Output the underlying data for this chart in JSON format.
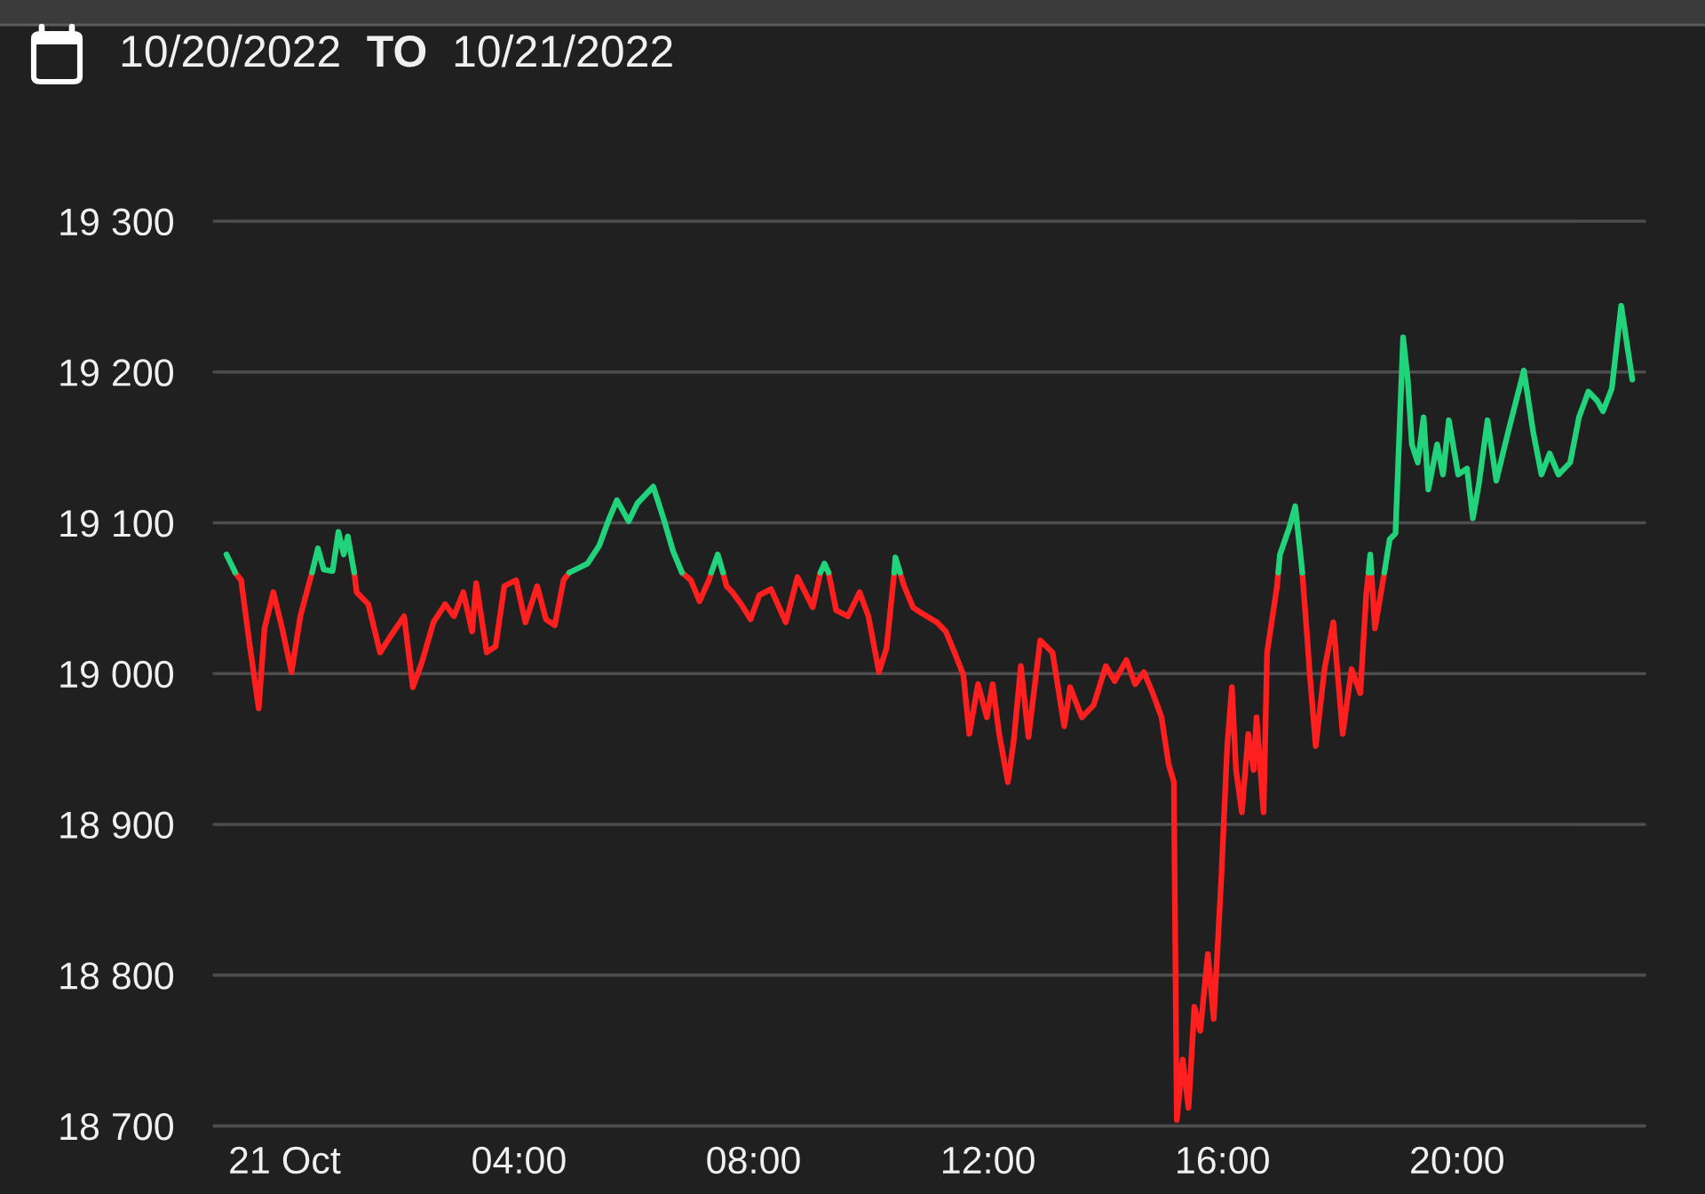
{
  "chart_data": {
    "type": "line",
    "title": "10/20/2022 TO 10/21/2022",
    "x": [
      -0.99,
      -0.84,
      -0.74,
      -0.59,
      -0.44,
      -0.34,
      -0.19,
      -0.04,
      0.12,
      0.27,
      0.42,
      0.47,
      0.57,
      0.67,
      0.82,
      0.92,
      1.01,
      1.08,
      1.18,
      1.19,
      1.23,
      1.43,
      1.63,
      1.83,
      2.04,
      2.19,
      2.34,
      2.54,
      2.74,
      2.89,
      3.05,
      3.2,
      3.27,
      3.45,
      3.6,
      3.75,
      3.95,
      4.11,
      4.31,
      4.46,
      4.61,
      4.76,
      4.86,
      5.17,
      5.37,
      5.52,
      5.67,
      5.87,
      6.02,
      6.29,
      6.48,
      6.63,
      6.78,
      6.93,
      7.08,
      7.24,
      7.28,
      7.39,
      7.48,
      7.54,
      7.64,
      7.79,
      7.95,
      8.1,
      8.3,
      8.55,
      8.75,
      9.01,
      9.14,
      9.21,
      9.28,
      9.41,
      9.61,
      9.81,
      9.96,
      10.14,
      10.27,
      10.4,
      10.42,
      10.5,
      10.57,
      10.72,
      10.87,
      11.13,
      11.28,
      11.43,
      11.58,
      11.68,
      11.83,
      11.98,
      12.08,
      12.19,
      12.34,
      12.44,
      12.56,
      12.69,
      12.89,
      13.1,
      13.3,
      13.4,
      13.6,
      13.8,
      14.01,
      14.16,
      14.36,
      14.51,
      14.66,
      14.81,
      14.96,
      15.08,
      15.17,
      15.22,
      15.32,
      15.42,
      15.52,
      15.62,
      15.75,
      15.85,
      15.98,
      16.08,
      16.16,
      16.23,
      16.33,
      16.44,
      16.53,
      16.58,
      16.7,
      16.76,
      16.93,
      16.95,
      16.98,
      17.14,
      17.24,
      17.34,
      17.36,
      17.44,
      17.49,
      17.59,
      17.74,
      17.89,
      18.05,
      18.2,
      18.35,
      18.45,
      18.49,
      18.52,
      18.54,
      18.6,
      18.76,
      18.85,
      18.95,
      19.08,
      19.16,
      19.23,
      19.33,
      19.43,
      19.51,
      19.66,
      19.76,
      19.86,
      20.02,
      20.17,
      20.27,
      20.37,
      20.52,
      20.67,
      20.87,
      21.14,
      21.3,
      21.44,
      21.58,
      21.73,
      21.93,
      22.08,
      22.24,
      22.39,
      22.49,
      22.64,
      22.8,
      22.99
    ],
    "series": [
      {
        "color": "#ff1f1f",
        "values": [
          null,
          19067,
          19062,
          19018,
          18977,
          19030,
          19054,
          19030,
          19001,
          19038,
          19060,
          19067,
          null,
          null,
          null,
          null,
          null,
          null,
          null,
          19067,
          19054,
          19046,
          19014,
          19026,
          19038,
          18991,
          19007,
          19034,
          19046,
          19038,
          19054,
          19028,
          19060,
          19014,
          19018,
          19058,
          19062,
          19034,
          19058,
          19036,
          19032,
          19062,
          19067,
          null,
          null,
          null,
          null,
          null,
          null,
          null,
          null,
          null,
          19067,
          19062,
          19048,
          19062,
          19067,
          null,
          19067,
          19058,
          19054,
          19046,
          19036,
          19052,
          19056,
          19034,
          19064,
          19044,
          19067,
          null,
          19067,
          19042,
          19038,
          19054,
          19038,
          19001,
          19017,
          19067,
          null,
          19067,
          19058,
          19044,
          19040,
          19034,
          19028,
          19014,
          18999,
          18960,
          18993,
          18971,
          18993,
          18960,
          18928,
          18956,
          19005,
          18958,
          19022,
          19014,
          18965,
          18991,
          18971,
          18979,
          19005,
          18995,
          19009,
          18993,
          19001,
          18987,
          18971,
          18940,
          18928,
          18704,
          18744,
          18712,
          18779,
          18763,
          18814,
          18771,
          18865,
          18952,
          18991,
          18936,
          18908,
          18960,
          18936,
          18971,
          18908,
          19014,
          19058,
          19067,
          null,
          null,
          null,
          null,
          19067,
          19026,
          18999,
          18952,
          19003,
          19034,
          18960,
          19003,
          18987,
          19052,
          19067,
          null,
          19067,
          19030,
          19067,
          null,
          null,
          null,
          null,
          null,
          null,
          null,
          null,
          null,
          null,
          null,
          null,
          null,
          null,
          null,
          null,
          null,
          null,
          null,
          null,
          null,
          null,
          null,
          null,
          null,
          null,
          null,
          null,
          null,
          null,
          null
        ]
      },
      {
        "color": "#21d37b",
        "values": [
          19079,
          19067,
          null,
          null,
          null,
          null,
          null,
          null,
          null,
          null,
          null,
          19067,
          19083,
          19069,
          19068,
          19094,
          19079,
          19091,
          19069,
          19067,
          null,
          null,
          null,
          null,
          null,
          null,
          null,
          null,
          null,
          null,
          null,
          null,
          null,
          null,
          null,
          null,
          null,
          null,
          null,
          null,
          null,
          null,
          19067,
          19073,
          19085,
          19101,
          19115,
          19101,
          19113,
          19124,
          19101,
          19081,
          19067,
          null,
          null,
          null,
          19067,
          19079,
          19067,
          null,
          null,
          null,
          null,
          null,
          null,
          null,
          null,
          null,
          19067,
          19073,
          19067,
          null,
          null,
          null,
          null,
          null,
          null,
          19067,
          19077,
          19067,
          null,
          null,
          null,
          null,
          null,
          null,
          null,
          null,
          null,
          null,
          null,
          null,
          null,
          null,
          null,
          null,
          null,
          null,
          null,
          null,
          null,
          null,
          null,
          null,
          null,
          null,
          null,
          null,
          null,
          null,
          null,
          null,
          null,
          null,
          null,
          null,
          null,
          null,
          null,
          null,
          null,
          null,
          null,
          null,
          null,
          null,
          null,
          null,
          null,
          19067,
          19079,
          19097,
          19111,
          19075,
          19067,
          null,
          null,
          null,
          null,
          null,
          null,
          null,
          null,
          null,
          19067,
          19079,
          19067,
          null,
          19067,
          19089,
          19093,
          19223,
          19195,
          19152,
          19140,
          19170,
          19122,
          19152,
          19132,
          19168,
          19132,
          19136,
          19103,
          19125,
          19168,
          19128,
          19160,
          19201,
          19160,
          19132,
          19146,
          19132,
          19140,
          19170,
          19187,
          19181,
          19174,
          19189,
          19244,
          19195
        ]
      }
    ],
    "xlim": [
      -1.2,
      23.2
    ],
    "xticks": [
      {
        "value": 0,
        "label": "21 Oct"
      },
      {
        "value": 4,
        "label": "04:00"
      },
      {
        "value": 8,
        "label": "08:00"
      },
      {
        "value": 12,
        "label": "12:00"
      },
      {
        "value": 16,
        "label": "16:00"
      },
      {
        "value": 20,
        "label": "20:00"
      }
    ],
    "ylim": [
      18700,
      19300
    ],
    "yticks": [
      {
        "value": 18700,
        "label": "18 700"
      },
      {
        "value": 18800,
        "label": "18 800"
      },
      {
        "value": 18900,
        "label": "18 900"
      },
      {
        "value": 19000,
        "label": "19 000"
      },
      {
        "value": 19100,
        "label": "19 100"
      },
      {
        "value": 19200,
        "label": "19 200"
      },
      {
        "value": 19300,
        "label": "19 300"
      }
    ],
    "grid": "y"
  }
}
